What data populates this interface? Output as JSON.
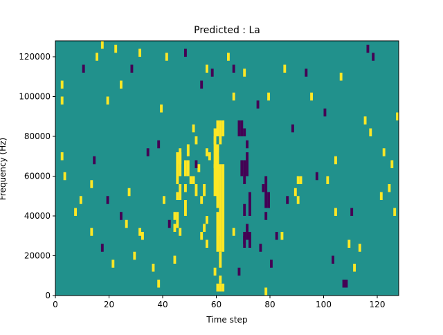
{
  "chart_data": {
    "type": "heatmap",
    "title": "Predicted : La",
    "xlabel": "Time step",
    "ylabel": "Frequency (Hz)",
    "xlim": [
      0,
      128
    ],
    "ylim": [
      0,
      128000
    ],
    "xticks": [
      0,
      20,
      40,
      60,
      80,
      100,
      120
    ],
    "xtick_labels": [
      "0",
      "20",
      "40",
      "60",
      "80",
      "100",
      "120"
    ],
    "yticks": [
      0,
      20000,
      40000,
      60000,
      80000,
      100000,
      120000
    ],
    "ytick_labels": [
      "0",
      "20000",
      "40000",
      "60000",
      "80000",
      "100000",
      "120000"
    ],
    "grid": false,
    "value_levels": [
      -1,
      0,
      1
    ],
    "colormap": "viridis",
    "colors": {
      "low": "#440154",
      "mid": "#21918c",
      "high": "#fde725"
    },
    "background_value": 0,
    "cells_positive": [
      [
        60,
        2000,
        4
      ],
      [
        61,
        2000,
        4
      ],
      [
        62,
        2000,
        4
      ],
      [
        61,
        6000,
        4
      ],
      [
        59,
        10000,
        4
      ],
      [
        61,
        14000,
        8
      ],
      [
        60,
        22000,
        16
      ],
      [
        61,
        22000,
        44
      ],
      [
        62,
        22000,
        44
      ],
      [
        60,
        30000,
        12
      ],
      [
        60,
        44000,
        32
      ],
      [
        59,
        50000,
        16
      ],
      [
        60,
        58000,
        12
      ],
      [
        59,
        64000,
        16
      ],
      [
        60,
        72000,
        4
      ],
      [
        59,
        76000,
        8
      ],
      [
        60,
        80000,
        8
      ],
      [
        61,
        76000,
        12
      ],
      [
        62,
        80000,
        8
      ],
      [
        45,
        48000,
        4
      ],
      [
        46,
        48000,
        4
      ],
      [
        46,
        52000,
        4
      ],
      [
        45,
        56000,
        16
      ],
      [
        46,
        60000,
        12
      ],
      [
        44,
        32000,
        4
      ],
      [
        44,
        38000,
        4
      ],
      [
        45,
        34000,
        8
      ],
      [
        46,
        30000,
        4
      ],
      [
        48,
        60000,
        8
      ],
      [
        49,
        60000,
        8
      ],
      [
        50,
        56000,
        4
      ],
      [
        48,
        52000,
        4
      ],
      [
        52,
        50000,
        6
      ],
      [
        54,
        46000,
        4
      ],
      [
        55,
        50000,
        6
      ],
      [
        56,
        36000,
        4
      ],
      [
        55,
        32000,
        4
      ],
      [
        54,
        28000,
        4
      ],
      [
        56,
        24000,
        4
      ],
      [
        56,
        70000,
        4
      ],
      [
        51,
        56000,
        4
      ],
      [
        46,
        66000,
        4
      ],
      [
        46,
        70000,
        4
      ],
      [
        49,
        70000,
        6
      ],
      [
        52,
        76000,
        4
      ],
      [
        51,
        82000,
        4
      ],
      [
        53,
        62000,
        4
      ],
      [
        48,
        44000,
        4
      ],
      [
        48,
        40000,
        4
      ],
      [
        78,
        0,
        4
      ],
      [
        84,
        28000,
        4
      ],
      [
        89,
        50000,
        4
      ],
      [
        90,
        56000,
        4
      ],
      [
        91,
        56000,
        4
      ],
      [
        2,
        104000,
        4
      ],
      [
        2,
        96000,
        4
      ],
      [
        2,
        68000,
        4
      ],
      [
        3,
        58000,
        4
      ],
      [
        7,
        40000,
        4
      ],
      [
        9,
        46000,
        4
      ],
      [
        13,
        30000,
        4
      ],
      [
        13,
        54000,
        4
      ],
      [
        15,
        118000,
        4
      ],
      [
        17,
        124000,
        4
      ],
      [
        19,
        96000,
        4
      ],
      [
        22,
        122000,
        4
      ],
      [
        24,
        104000,
        4
      ],
      [
        31,
        120000,
        4
      ],
      [
        39,
        92000,
        4
      ],
      [
        41,
        118000,
        4
      ],
      [
        21,
        14000,
        4
      ],
      [
        26,
        34000,
        4
      ],
      [
        27,
        50000,
        4
      ],
      [
        29,
        18000,
        4
      ],
      [
        31,
        30000,
        4
      ],
      [
        32,
        28000,
        4
      ],
      [
        36,
        12000,
        4
      ],
      [
        38,
        4000,
        4
      ],
      [
        40,
        46000,
        4
      ],
      [
        44,
        16000,
        4
      ],
      [
        56,
        112000,
        4
      ],
      [
        57,
        68000,
        4
      ],
      [
        64,
        118000,
        4
      ],
      [
        66,
        30000,
        4
      ],
      [
        66,
        98000,
        4
      ],
      [
        70,
        110000,
        4
      ],
      [
        79,
        98000,
        4
      ],
      [
        85,
        112000,
        4
      ],
      [
        90,
        46000,
        4
      ],
      [
        95,
        98000,
        4
      ],
      [
        101,
        56000,
        4
      ],
      [
        104,
        66000,
        4
      ],
      [
        104,
        40000,
        4
      ],
      [
        106,
        108000,
        4
      ],
      [
        109,
        24000,
        4
      ],
      [
        111,
        12000,
        4
      ],
      [
        113,
        22000,
        4
      ],
      [
        115,
        86000,
        4
      ],
      [
        117,
        80000,
        4
      ],
      [
        121,
        48000,
        4
      ],
      [
        122,
        70000,
        4
      ],
      [
        124,
        52000,
        4
      ],
      [
        125,
        64000,
        4
      ],
      [
        126,
        40000,
        4
      ],
      [
        127,
        88000,
        4
      ]
    ],
    "cells_negative": [
      [
        68,
        80000,
        8
      ],
      [
        69,
        80000,
        8
      ],
      [
        70,
        80000,
        4
      ],
      [
        71,
        74000,
        4
      ],
      [
        70,
        56000,
        12
      ],
      [
        70,
        40000,
        6
      ],
      [
        70,
        26000,
        4
      ],
      [
        70,
        24000,
        8
      ],
      [
        69,
        60000,
        8
      ],
      [
        71,
        60000,
        12
      ],
      [
        71,
        28000,
        8
      ],
      [
        72,
        40000,
        12
      ],
      [
        72,
        28000,
        4
      ],
      [
        72,
        24000,
        8
      ],
      [
        77,
        52000,
        4
      ],
      [
        78,
        44000,
        16
      ],
      [
        79,
        44000,
        8
      ],
      [
        78,
        38000,
        4
      ],
      [
        54,
        104000,
        4
      ],
      [
        58,
        110000,
        4
      ],
      [
        68,
        10000,
        4
      ],
      [
        76,
        22000,
        4
      ],
      [
        80,
        14000,
        4
      ],
      [
        82,
        28000,
        4
      ],
      [
        86,
        46000,
        4
      ],
      [
        88,
        82000,
        4
      ],
      [
        93,
        110000,
        4
      ],
      [
        100,
        90000,
        4
      ],
      [
        103,
        16000,
        4
      ],
      [
        107,
        4000,
        4
      ],
      [
        108,
        4000,
        4
      ],
      [
        110,
        40000,
        4
      ],
      [
        10,
        112000,
        4
      ],
      [
        14,
        66000,
        4
      ],
      [
        17,
        22000,
        4
      ],
      [
        19,
        46000,
        4
      ],
      [
        24,
        38000,
        4
      ],
      [
        28,
        112000,
        4
      ],
      [
        34,
        70000,
        4
      ],
      [
        38,
        74000,
        4
      ],
      [
        42,
        34000,
        4
      ],
      [
        48,
        120000,
        4
      ],
      [
        52,
        64000,
        4
      ],
      [
        66,
        112000,
        4
      ],
      [
        75,
        94000,
        4
      ],
      [
        97,
        58000,
        4
      ],
      [
        116,
        122000,
        4
      ],
      [
        118,
        118000,
        4
      ]
    ]
  }
}
